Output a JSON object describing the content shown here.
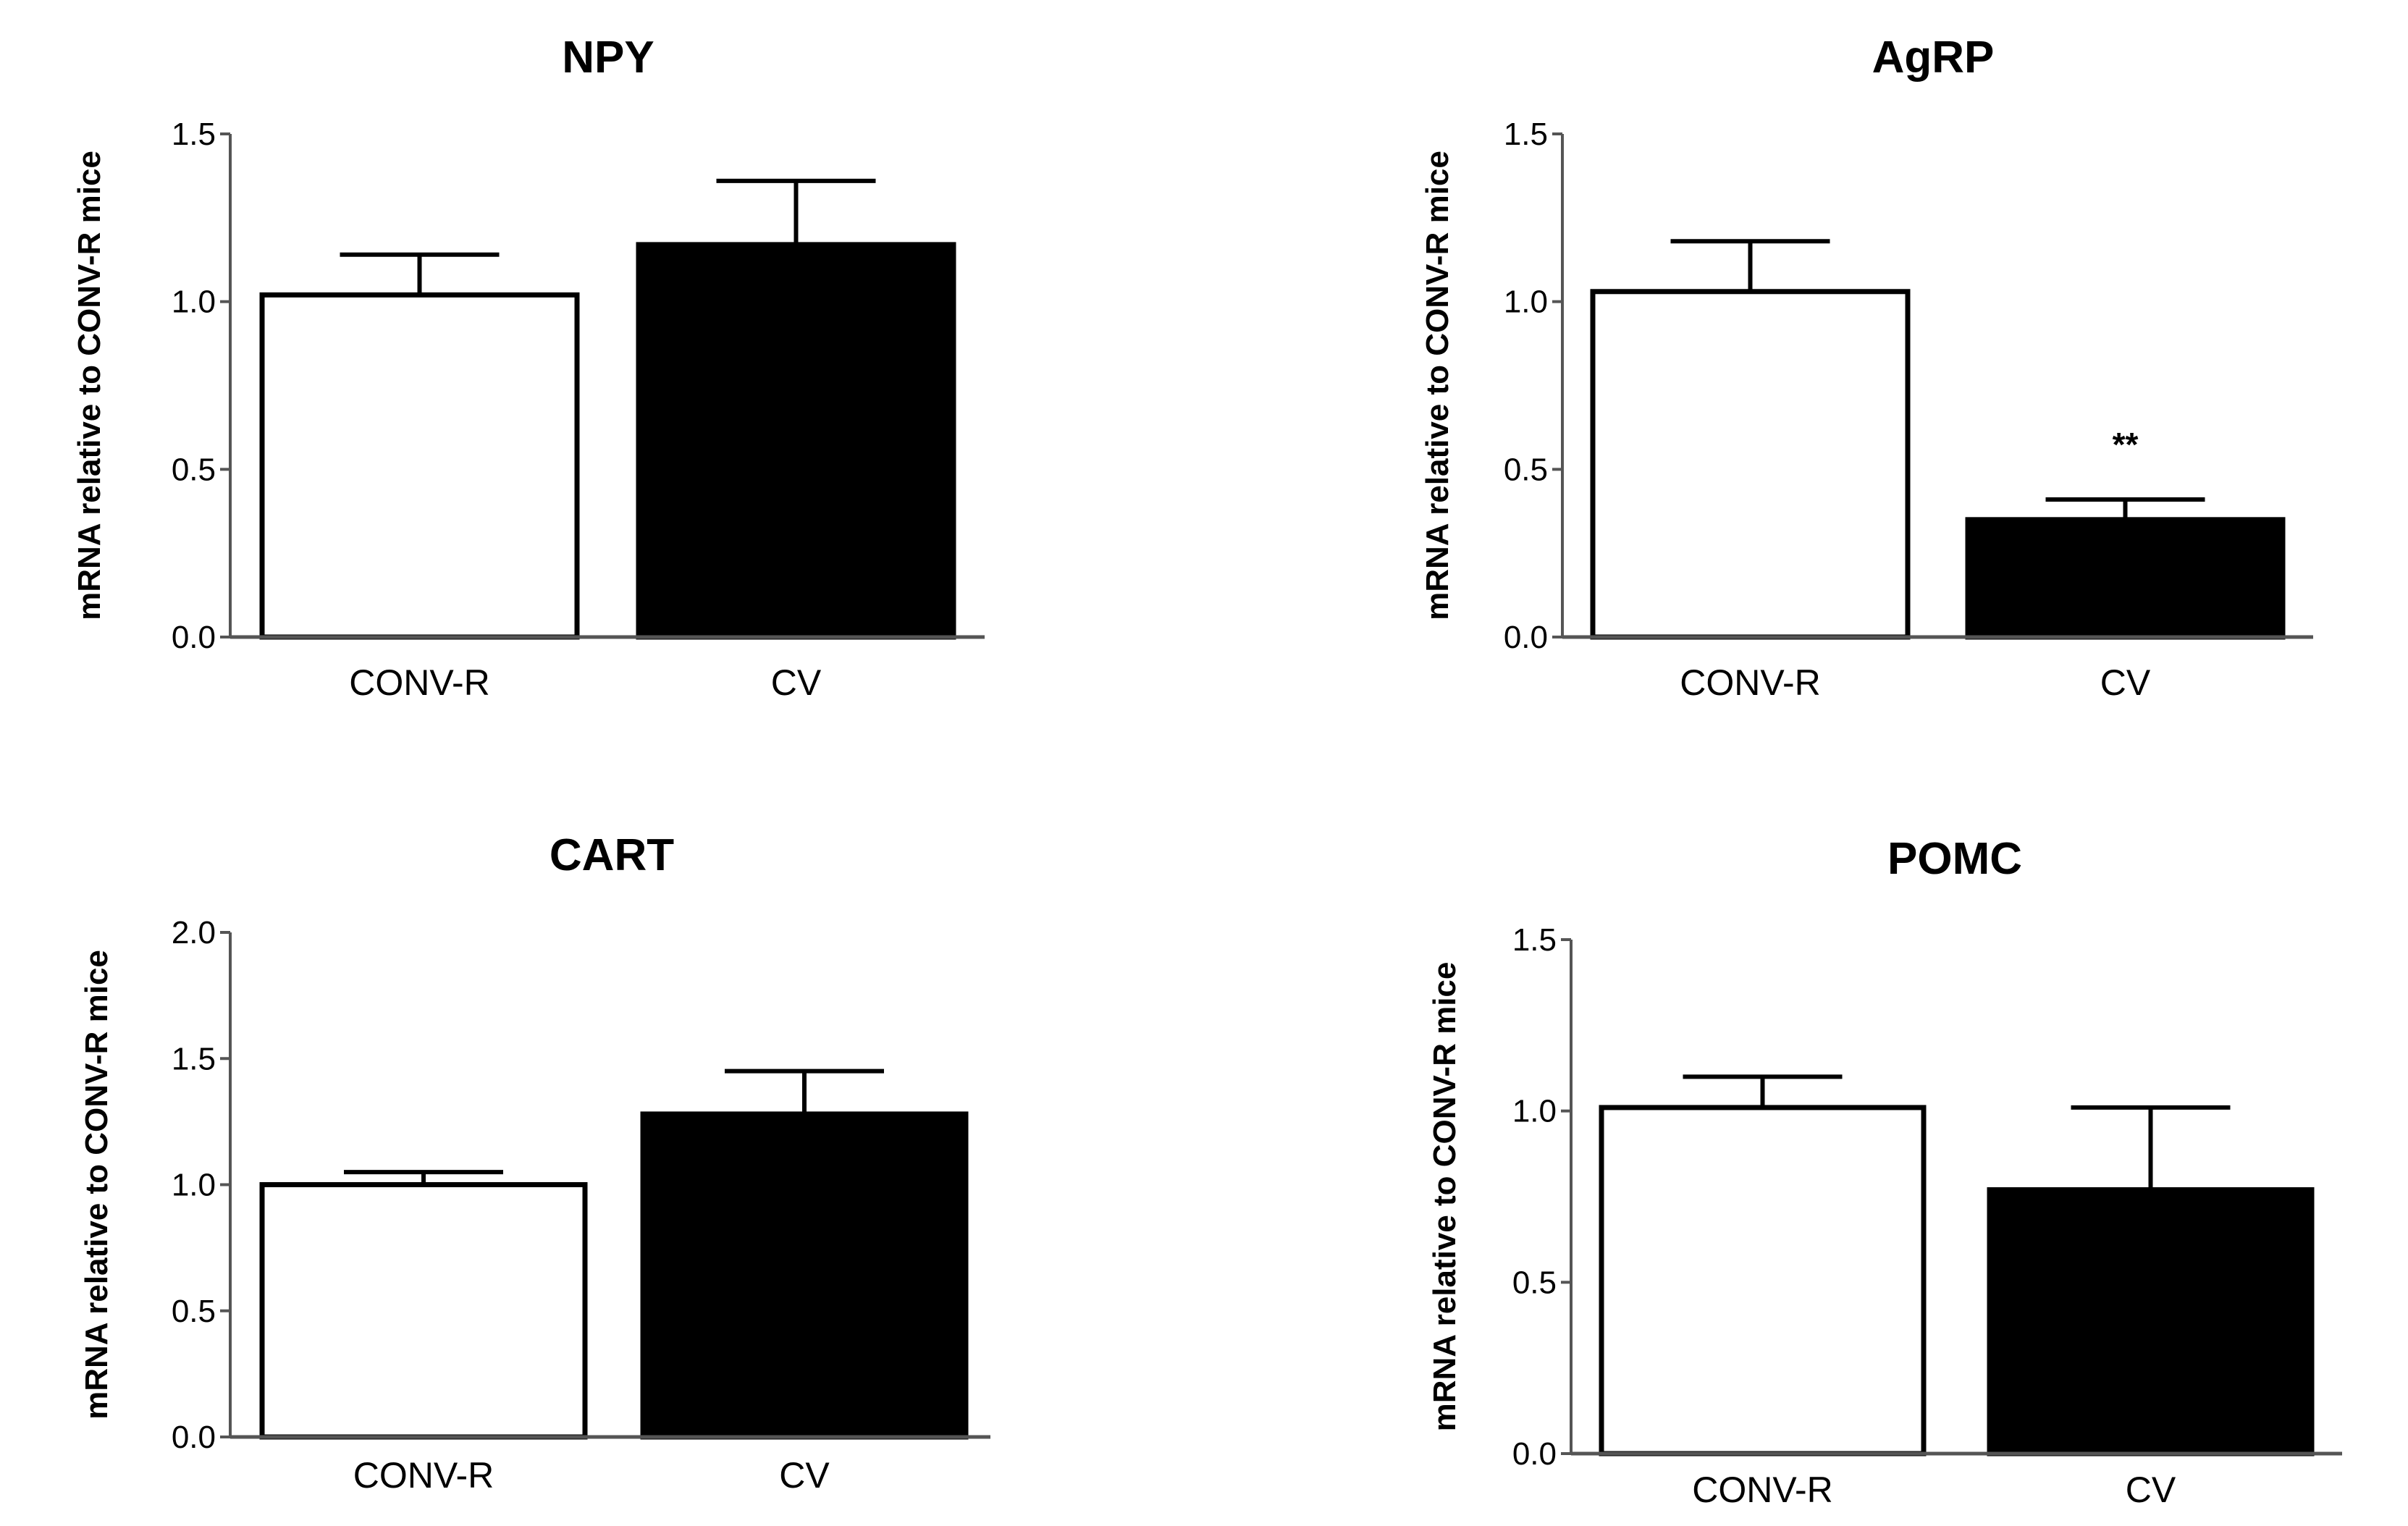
{
  "figure": {
    "colors": {
      "control_bar": "#ffffff",
      "treatment_bar": "#000000",
      "axis": "#555555"
    }
  },
  "chart_data": [
    {
      "type": "bar",
      "title": "NPY",
      "xlabel": "",
      "ylabel": "mRNA relative to CONV-R mice",
      "ylim": [
        0,
        1.5
      ],
      "yticks": [
        "0.0",
        "0.5",
        "1.0",
        "1.5"
      ],
      "categories": [
        "CONV-R",
        "CV"
      ],
      "values": [
        1.02,
        1.17
      ],
      "errors": [
        0.12,
        0.19
      ],
      "annotations": [
        "",
        ""
      ]
    },
    {
      "type": "bar",
      "title": "AgRP",
      "xlabel": "",
      "ylabel": "mRNA relative to CONV-R mice",
      "ylim": [
        0,
        1.5
      ],
      "yticks": [
        "0.0",
        "0.5",
        "1.0",
        "1.5"
      ],
      "categories": [
        "CONV-R",
        "CV"
      ],
      "values": [
        1.03,
        0.35
      ],
      "errors": [
        0.15,
        0.06
      ],
      "annotations": [
        "",
        "**"
      ]
    },
    {
      "type": "bar",
      "title": "CART",
      "xlabel": "",
      "ylabel": "mRNA relative to CONV-R mice",
      "ylim": [
        0,
        2.0
      ],
      "yticks": [
        "0.0",
        "0.5",
        "1.0",
        "1.5",
        "2.0"
      ],
      "categories": [
        "CONV-R",
        "CV"
      ],
      "values": [
        1.0,
        1.28
      ],
      "errors": [
        0.05,
        0.17
      ],
      "annotations": [
        "",
        ""
      ]
    },
    {
      "type": "bar",
      "title": "POMC",
      "xlabel": "",
      "ylabel": "mRNA relative to CONV-R mice",
      "ylim": [
        0,
        1.5
      ],
      "yticks": [
        "0.0",
        "0.5",
        "1.0",
        "1.5"
      ],
      "categories": [
        "CONV-R",
        "CV"
      ],
      "values": [
        1.01,
        0.77
      ],
      "errors": [
        0.09,
        0.24
      ],
      "annotations": [
        "",
        ""
      ]
    }
  ]
}
